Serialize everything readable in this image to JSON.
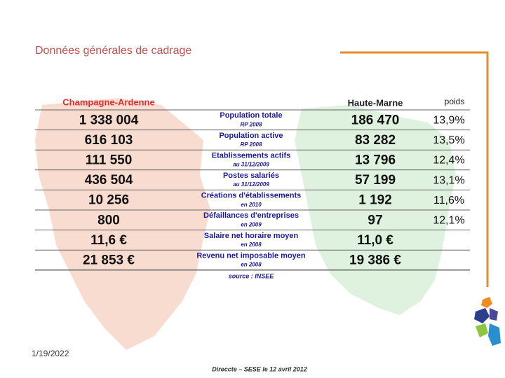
{
  "title": "Données générales de cadrage",
  "table": {
    "headers": {
      "champagne_ardenne": "Champagne-Ardenne",
      "haute_marne": "Haute-Marne",
      "poids": "poids"
    },
    "rows": [
      {
        "champagne_ardenne": "1 338 004",
        "indicator": "Population totale",
        "period": "RP 2008",
        "haute_marne": "186 470",
        "poids": "13,9%"
      },
      {
        "champagne_ardenne": "616 103",
        "indicator": "Population active",
        "period": "RP 2008",
        "haute_marne": "83 282",
        "poids": "13,5%"
      },
      {
        "champagne_ardenne": "111 550",
        "indicator": "Etablissements actifs",
        "period": "au 31/12/2009",
        "haute_marne": "13 796",
        "poids": "12,4%"
      },
      {
        "champagne_ardenne": "436 504",
        "indicator": "Postes salariés",
        "period": "au 31/12/2009",
        "haute_marne": "57 199",
        "poids": "13,1%"
      },
      {
        "champagne_ardenne": "10 256",
        "indicator": "Créations d'établissements",
        "period": "en 2010",
        "haute_marne": "1 192",
        "poids": "11,6%"
      },
      {
        "champagne_ardenne": "800",
        "indicator": "Défaillances d'entreprises",
        "period": "en 2009",
        "haute_marne": "97",
        "poids": "12,1%"
      },
      {
        "champagne_ardenne": "11,6 €",
        "indicator": "Salaire net horaire moyen",
        "period": "en 2008",
        "haute_marne": "11,0 €"
      },
      {
        "champagne_ardenne": "21 853 €",
        "indicator": "Revenu net imposable moyen",
        "period": "en 2008",
        "haute_marne": "19 386 €"
      }
    ],
    "source": "source : INSEE"
  },
  "date": "1/19/2022",
  "footer": "Direccte – SESE le 12 avril 2012"
}
